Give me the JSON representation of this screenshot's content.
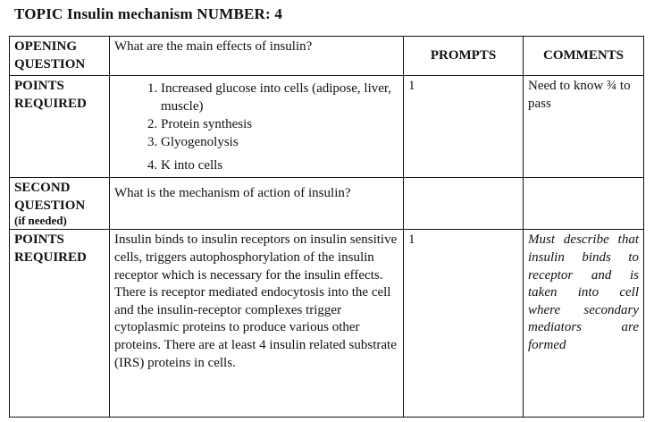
{
  "title": "TOPIC  Insulin mechanism NUMBER: 4",
  "headers": {
    "prompts": "PROMPTS",
    "comments": "COMMENTS"
  },
  "rows": {
    "opening": {
      "label_line1": "OPENING",
      "label_line2": "QUESTION",
      "question": "What are the main effects of insulin?"
    },
    "points1": {
      "label_line1": "POINTS",
      "label_line2": "REQUIRED",
      "items": [
        "Increased glucose into cells (adipose, liver, muscle)",
        "Protein synthesis",
        "Glyogenolysis",
        "K into cells"
      ],
      "prompt": "1",
      "comment": "Need to know ¾ to pass"
    },
    "second": {
      "label_line1": "SECOND",
      "label_line2": "QUESTION",
      "label_note": "(if needed)",
      "question": "What is the mechanism of action of insulin?"
    },
    "points2": {
      "label_line1": "POINTS",
      "label_line2": "REQUIRED",
      "answer": "Insulin binds to insulin receptors on insulin sensitive cells, triggers autophosphorylation of the insulin receptor which is necessary for the insulin effects. There is receptor mediated endocytosis into the cell and the insulin-receptor complexes trigger cytoplasmic proteins to produce various other proteins. There are at least 4 insulin related substrate (IRS) proteins in cells.",
      "prompt": "1",
      "comment": "Must describe that insulin binds to receptor and is taken into cell where secondary mediators are formed"
    }
  }
}
